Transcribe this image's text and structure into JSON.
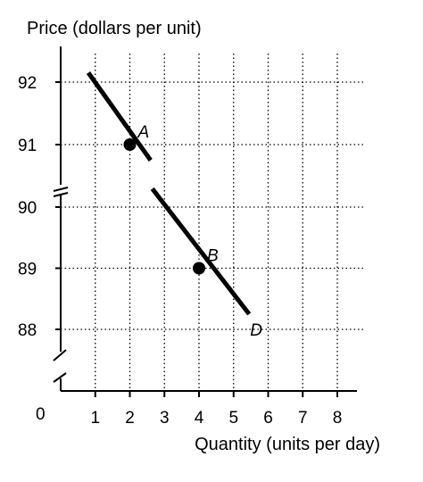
{
  "chart_data": {
    "type": "line",
    "ylabel": "Price (dollars per unit)",
    "xlabel": "Quantity (units per day)",
    "origin_label": "0",
    "x_ticks": [
      "1",
      "2",
      "3",
      "4",
      "5",
      "6",
      "7",
      "8"
    ],
    "y_ticks": [
      "92",
      "91",
      "90",
      "89",
      "88"
    ],
    "xlim": [
      0,
      8.5
    ],
    "grid": true,
    "y_axis_break": true,
    "series": [
      {
        "name": "D",
        "segments": [
          [
            {
              "x": 0.8,
              "y": 92.15
            },
            {
              "x": 2.6,
              "y": 90.75
            }
          ],
          [
            {
              "x": 2.65,
              "y": 90.3
            },
            {
              "x": 5.45,
              "y": 88.25
            }
          ]
        ]
      }
    ],
    "points": [
      {
        "label": "A",
        "x": 2,
        "y": 91
      },
      {
        "label": "B",
        "x": 4,
        "y": 89
      }
    ]
  }
}
